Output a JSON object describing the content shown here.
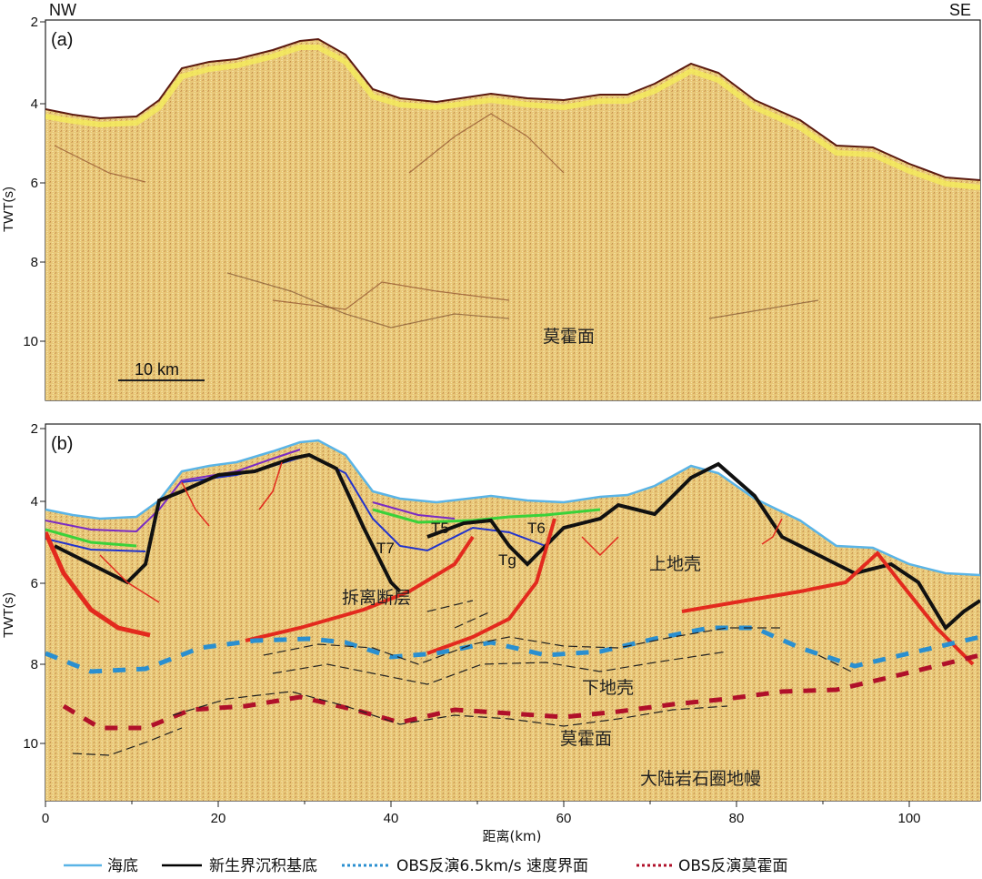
{
  "orientation": {
    "left": "NW",
    "right": "SE"
  },
  "y_axis_label": "TWT(s)",
  "x_axis_label": "距离(km)",
  "x_ticks": [
    "0",
    "20",
    "40",
    "60",
    "80",
    "100"
  ],
  "panel_a": {
    "tag": "(a)",
    "y_ticks": [
      "2",
      "4",
      "6",
      "8",
      "10"
    ],
    "scale_bar": "10 km",
    "moho_label": "莫霍面"
  },
  "panel_b": {
    "tag": "(b)",
    "y_ticks": [
      "2",
      "4",
      "6",
      "8",
      "10"
    ],
    "horizons": {
      "t7": "T7",
      "t5": "T5",
      "t6": "T6",
      "tg": "Tg"
    },
    "labels": {
      "detachment": "拆离断层",
      "upper_crust": "上地壳",
      "lower_crust": "下地壳",
      "moho": "莫霍面",
      "mantle": "大陆岩石圈地幔"
    }
  },
  "legend": [
    {
      "label": "海底",
      "color": "#5ab4e6",
      "style": "solid"
    },
    {
      "label": "新生界沉积基底",
      "color": "#000000",
      "style": "solid"
    },
    {
      "label": "OBS反演6.5km/s 速度界面",
      "color": "#2a8fd0",
      "style": "dotted"
    },
    {
      "label": "OBS反演莫霍面",
      "color": "#b0102a",
      "style": "dotted"
    }
  ],
  "colors": {
    "seismic_bg": "#eac978",
    "seafloor": "#5ab4e6",
    "basement": "#111111",
    "fault": "#e32a1e",
    "obs65": "#2a8fd0",
    "obs_moho": "#b0102a",
    "t5_green": "#3ad23a",
    "purple": "#7a2bc4",
    "blue": "#2233cc"
  }
}
